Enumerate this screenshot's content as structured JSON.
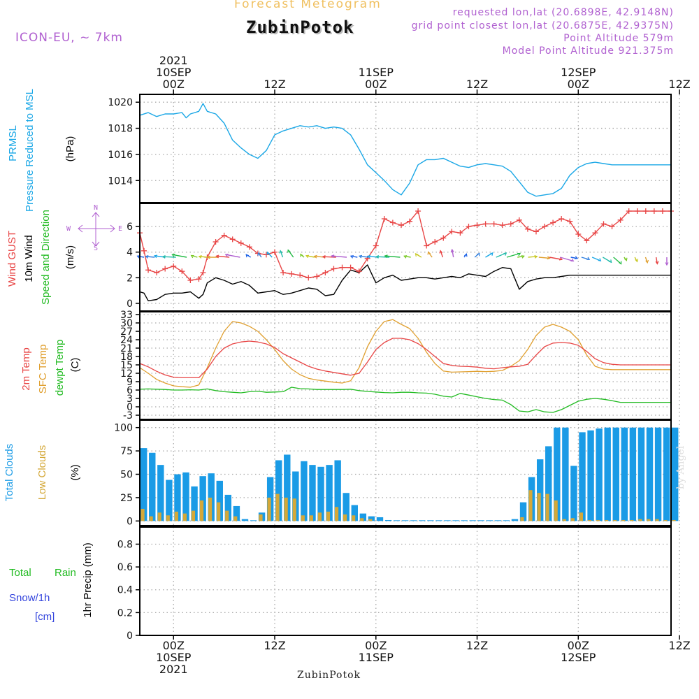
{
  "header": {
    "subtitle": "Forecast Meteogram",
    "title": "ZubinPotok",
    "model": "ICON-EU, ~ 7km",
    "requested": "requested lon,lat (20.6898E, 42.9148N)",
    "closest": "grid point closest lon,lat (20.6875E, 42.9375N)",
    "point_alt": "Point Altitude 579m",
    "model_alt": "Model Point Altitude 921.375m"
  },
  "footer": {
    "location": "ZubinPotok",
    "watermark": "by Angel"
  },
  "colors": {
    "pressure": "#1aa7e6",
    "gust": "#e84545",
    "wind": "#000000",
    "dir": "#22bb22",
    "temp": "#e84545",
    "sfc": "#e0a030",
    "dew": "#22bb22",
    "total_clouds": "#1a9be6",
    "low_clouds": "#d4a838",
    "rain": "#22bb22",
    "snow": "#3344dd",
    "compass": "#b060d0"
  },
  "time_axis": {
    "top_ticks": [
      {
        "h": 0,
        "lines": [
          "2021",
          "10SEP",
          "00Z"
        ]
      },
      {
        "h": 12,
        "lines": [
          "12Z"
        ]
      },
      {
        "h": 24,
        "lines": [
          "11SEP",
          "00Z"
        ]
      },
      {
        "h": 36,
        "lines": [
          "12Z"
        ]
      },
      {
        "h": 48,
        "lines": [
          "12SEP",
          "00Z"
        ]
      },
      {
        "h": 60,
        "lines": [
          "12Z"
        ]
      }
    ],
    "bottom_ticks": [
      {
        "h": 0,
        "lines": [
          "00Z",
          "10SEP",
          "2021"
        ]
      },
      {
        "h": 12,
        "lines": [
          "12Z"
        ]
      },
      {
        "h": 24,
        "lines": [
          "00Z",
          "11SEP"
        ]
      },
      {
        "h": 36,
        "lines": [
          "12Z"
        ]
      },
      {
        "h": 48,
        "lines": [
          "00Z",
          "12SEP"
        ]
      },
      {
        "h": 60,
        "lines": [
          "12Z"
        ]
      }
    ]
  },
  "panels": {
    "pressure": {
      "labels": [
        {
          "text": "PRMSL",
          "color": "#1aa7e6"
        },
        {
          "text": "Pressure Reduced to MSL",
          "color": "#1aa7e6"
        },
        {
          "text": "(hPa)",
          "color": "#000000"
        }
      ],
      "ticks": [
        "1014",
        "1016",
        "1018",
        "1020"
      ]
    },
    "wind": {
      "labels": [
        {
          "text": "Wind GUST",
          "color": "#e84545"
        },
        {
          "text": "10m Wind",
          "color": "#000000"
        },
        {
          "text": "Speed and Direction",
          "color": "#22bb22"
        },
        {
          "text": "(m/s)",
          "color": "#000000"
        }
      ],
      "ticks": [
        "0",
        "2",
        "4",
        "6"
      ],
      "compass": {
        "n": "N",
        "s": "S",
        "w": "W",
        "e": "E"
      }
    },
    "temp": {
      "labels": [
        {
          "text": "2m Temp",
          "color": "#e84545"
        },
        {
          "text": "SFC Temp",
          "color": "#e0a030"
        },
        {
          "text": "dewpt Temp",
          "color": "#22bb22"
        },
        {
          "text": "(C)",
          "color": "#000000"
        }
      ],
      "ticks": [
        "-3",
        "0",
        "3",
        "6",
        "9",
        "12",
        "15",
        "18",
        "21",
        "24",
        "27",
        "30",
        "33"
      ]
    },
    "clouds": {
      "labels": [
        {
          "text": "Total Clouds",
          "color": "#1a9be6"
        },
        {
          "text": "Low Clouds",
          "color": "#d4a838"
        },
        {
          "text": "(%)",
          "color": "#000000"
        }
      ],
      "ticks": [
        "0",
        "25",
        "50",
        "75",
        "100"
      ]
    },
    "precip": {
      "labels": [
        {
          "text": "Total",
          "color": "#22bb22"
        },
        {
          "text": "Rain",
          "color": "#22bb22"
        },
        {
          "text": "Snow/1h",
          "color": "#3344dd"
        },
        {
          "text": "[cm]",
          "color": "#3344dd"
        },
        {
          "text": "1hr Precip (mm)",
          "color": "#000000"
        }
      ],
      "ticks": [
        "0",
        "0.2",
        "0.4",
        "0.6",
        "0.8"
      ]
    }
  },
  "chart_data": {
    "type": "line",
    "x_unit": "hours since 10SEP 00Z",
    "xlim": [
      -4,
      59
    ],
    "pressure": {
      "ylim": [
        1012.3,
        1020.6
      ],
      "x": [
        -4,
        -3,
        -2,
        -1,
        0,
        1,
        1.5,
        2,
        3,
        3.5,
        4,
        5,
        6,
        7,
        8,
        9,
        10,
        11,
        12,
        13,
        14,
        15,
        16,
        17,
        18,
        19,
        20,
        21,
        22,
        23,
        24,
        25,
        26,
        27,
        28,
        29,
        30,
        31,
        32,
        33,
        34,
        35,
        36,
        37,
        38,
        39,
        40,
        41,
        42,
        43,
        44,
        45,
        46,
        47,
        48,
        49,
        50,
        51,
        52,
        53,
        54,
        55,
        56,
        57,
        58,
        59
      ],
      "y": [
        1019.0,
        1019.2,
        1018.9,
        1019.1,
        1019.1,
        1019.2,
        1018.8,
        1019.1,
        1019.3,
        1019.9,
        1019.3,
        1019.1,
        1018.4,
        1017.1,
        1016.5,
        1016.0,
        1015.7,
        1016.3,
        1017.5,
        1017.8,
        1018.0,
        1018.2,
        1018.1,
        1018.2,
        1018.0,
        1018.1,
        1018.0,
        1017.5,
        1016.4,
        1015.2,
        1014.6,
        1014.0,
        1013.3,
        1012.9,
        1013.8,
        1015.2,
        1015.6,
        1015.6,
        1015.7,
        1015.4,
        1015.1,
        1015.0,
        1015.2,
        1015.3,
        1015.2,
        1015.1,
        1014.7,
        1013.9,
        1013.1,
        1012.8,
        1012.9,
        1013.0,
        1013.4,
        1014.4,
        1015.0,
        1015.3,
        1015.4,
        1015.3,
        1015.2,
        1015.2,
        1015.2,
        1015.2,
        1015.2,
        1015.2,
        1015.2,
        1015.2
      ]
    },
    "wind": {
      "ylim": [
        -0.6,
        7.8
      ],
      "x": [
        -4,
        -3.5,
        -3,
        -2,
        -1,
        0,
        1,
        2,
        3,
        3.5,
        4,
        5,
        6,
        7,
        8,
        9,
        10,
        11,
        12,
        13,
        14,
        15,
        16,
        17,
        18,
        19,
        20,
        21,
        22,
        23,
        24,
        25,
        26,
        27,
        28,
        29,
        30,
        31,
        32,
        33,
        34,
        35,
        36,
        37,
        38,
        39,
        40,
        41,
        42,
        43,
        44,
        45,
        46,
        47,
        48,
        49,
        50,
        51,
        52,
        53,
        54,
        55,
        56,
        57,
        58,
        59
      ],
      "gust": [
        5.5,
        4.1,
        2.6,
        2.4,
        2.7,
        2.9,
        2.5,
        1.8,
        1.9,
        2.4,
        3.6,
        4.8,
        5.3,
        5.0,
        4.7,
        4.4,
        3.9,
        3.8,
        4.0,
        2.4,
        2.3,
        2.2,
        2.0,
        2.1,
        2.4,
        2.7,
        2.8,
        2.8,
        2.5,
        3.5,
        4.5,
        6.6,
        6.3,
        6.1,
        6.4,
        7.2,
        4.5,
        4.8,
        5.1,
        5.6,
        5.5,
        6.0,
        6.1,
        6.2,
        6.2,
        6.1,
        6.2,
        6.5,
        5.8,
        5.6,
        6.0,
        6.3,
        6.6,
        6.4,
        5.4,
        4.9,
        5.5,
        6.2,
        6.0,
        6.5,
        7.2,
        7.2,
        7.2,
        7.2,
        7.2,
        7.2
      ],
      "speed": [
        0.9,
        0.8,
        0.2,
        0.3,
        0.7,
        0.8,
        0.8,
        0.9,
        0.4,
        0.7,
        1.6,
        2.0,
        1.8,
        1.5,
        1.7,
        1.4,
        0.8,
        0.9,
        1.0,
        0.7,
        0.8,
        1.0,
        1.2,
        1.1,
        0.6,
        0.7,
        1.8,
        2.6,
        2.4,
        3.0,
        1.6,
        2.0,
        2.2,
        1.8,
        1.9,
        2.0,
        2.0,
        1.9,
        2.0,
        2.1,
        2.0,
        2.3,
        2.2,
        2.1,
        2.5,
        2.8,
        2.7,
        1.1,
        1.7,
        1.9,
        2.0,
        2.0,
        2.1,
        2.2,
        2.2,
        2.2,
        2.2,
        2.2,
        2.2,
        2.2,
        2.2,
        2.2,
        2.2,
        2.2,
        2.2,
        2.2
      ]
    },
    "temp": {
      "ylim": [
        -4.5,
        34
      ],
      "x": [
        -4,
        -3,
        -2,
        -1,
        0,
        1,
        2,
        3,
        4,
        5,
        6,
        7,
        8,
        9,
        10,
        11,
        12,
        13,
        14,
        15,
        16,
        17,
        18,
        19,
        20,
        21,
        22,
        23,
        24,
        25,
        26,
        27,
        28,
        29,
        30,
        31,
        32,
        33,
        34,
        35,
        36,
        37,
        38,
        39,
        40,
        41,
        42,
        43,
        44,
        45,
        46,
        47,
        48,
        49,
        50,
        51,
        52,
        53,
        54,
        55,
        56,
        57,
        58,
        59
      ],
      "t2m": [
        15.5,
        14.3,
        12.7,
        11.4,
        10.6,
        10.4,
        10.4,
        10.4,
        13.5,
        18.0,
        21.0,
        22.5,
        23.2,
        23.5,
        23.2,
        22.5,
        21.2,
        19.0,
        17.5,
        16.0,
        14.5,
        13.5,
        12.8,
        12.3,
        11.8,
        11.3,
        12.0,
        16.0,
        20.5,
        23.0,
        24.5,
        24.5,
        24.0,
        22.6,
        20.5,
        18.0,
        15.5,
        14.8,
        14.5,
        14.4,
        14.2,
        13.8,
        13.6,
        14.0,
        14.3,
        14.5,
        15.2,
        18.5,
        21.5,
        22.8,
        23.0,
        22.8,
        22.0,
        19.8,
        17.2,
        15.8,
        15.2,
        15.0,
        15.0,
        15.0,
        15.0,
        15.0,
        15.0,
        15.0
      ],
      "sfc": [
        14.0,
        12.0,
        9.8,
        8.5,
        7.5,
        7.2,
        7.0,
        7.8,
        14.0,
        21.0,
        27.0,
        30.5,
        30.0,
        28.8,
        27.0,
        24.0,
        20.5,
        16.5,
        13.5,
        11.5,
        10.2,
        9.6,
        9.2,
        8.8,
        8.5,
        9.3,
        14.0,
        21.5,
        27.0,
        30.5,
        31.2,
        29.5,
        28.0,
        24.5,
        19.5,
        15.5,
        12.8,
        12.4,
        12.5,
        12.6,
        12.7,
        12.6,
        12.7,
        13.0,
        14.5,
        16.5,
        20.5,
        25.5,
        28.5,
        29.5,
        28.5,
        27.0,
        24.0,
        18.5,
        14.5,
        13.5,
        13.3,
        13.3,
        13.3,
        13.3,
        13.3,
        13.3,
        13.3,
        13.3
      ],
      "dew": [
        6.3,
        6.4,
        6.3,
        6.2,
        6.0,
        6.0,
        6.1,
        6.0,
        6.4,
        5.8,
        5.4,
        5.2,
        5.0,
        5.4,
        5.6,
        5.2,
        5.3,
        5.4,
        7.0,
        6.5,
        6.4,
        6.2,
        6.2,
        6.2,
        6.2,
        6.3,
        5.8,
        5.5,
        5.3,
        5.1,
        5.0,
        5.2,
        5.2,
        5.0,
        4.9,
        4.5,
        3.8,
        3.5,
        4.8,
        4.2,
        3.6,
        3.0,
        2.6,
        2.4,
        0.8,
        -1.5,
        -1.8,
        -1.0,
        -1.8,
        -2.0,
        -1.0,
        0.5,
        2.0,
        2.7,
        3.0,
        2.7,
        2.2,
        1.6,
        1.6,
        1.6,
        1.6,
        1.6,
        1.6,
        1.6
      ]
    },
    "clouds": {
      "ylim": [
        -5,
        108
      ],
      "x": [
        -4,
        -3,
        -2,
        -1,
        0,
        1,
        2,
        3,
        4,
        5,
        6,
        7,
        8,
        9,
        10,
        11,
        12,
        13,
        14,
        15,
        16,
        17,
        18,
        19,
        20,
        21,
        22,
        23,
        24,
        25,
        26,
        27,
        28,
        29,
        30,
        31,
        32,
        33,
        34,
        35,
        36,
        37,
        38,
        39,
        40,
        41,
        42,
        43,
        44,
        45,
        46,
        47,
        48,
        49,
        50,
        51,
        52,
        53,
        54,
        55,
        56,
        57,
        58,
        59
      ],
      "total": [
        78,
        73,
        60,
        44,
        50,
        52,
        37,
        48,
        51,
        43,
        28,
        16,
        2,
        0,
        9,
        47,
        65,
        71,
        53,
        64,
        60,
        58,
        60,
        65,
        30,
        17,
        8,
        5,
        4,
        1,
        0,
        0,
        0,
        0,
        0,
        0,
        0,
        0,
        0,
        0,
        0,
        0,
        0,
        0,
        2,
        20,
        47,
        66,
        80,
        100,
        100,
        59,
        95,
        97,
        99,
        100,
        100,
        100,
        100,
        100,
        100,
        100,
        100,
        100
      ],
      "low": [
        13,
        5,
        9,
        6,
        10,
        8,
        11,
        22,
        25,
        20,
        11,
        5,
        0,
        0,
        7,
        25,
        29,
        25,
        24,
        6,
        6,
        9,
        10,
        15,
        7,
        6,
        3,
        2,
        0,
        0,
        0,
        0,
        0,
        0,
        0,
        0,
        0,
        0,
        0,
        0,
        0,
        0,
        0,
        0,
        0,
        4,
        33,
        30,
        29,
        22,
        2,
        3,
        9,
        1,
        1,
        1,
        1,
        1,
        1,
        2,
        2,
        2,
        1,
        1
      ]
    },
    "precip": {
      "ylim": [
        0,
        0.95
      ],
      "rain": [],
      "snow": []
    }
  }
}
